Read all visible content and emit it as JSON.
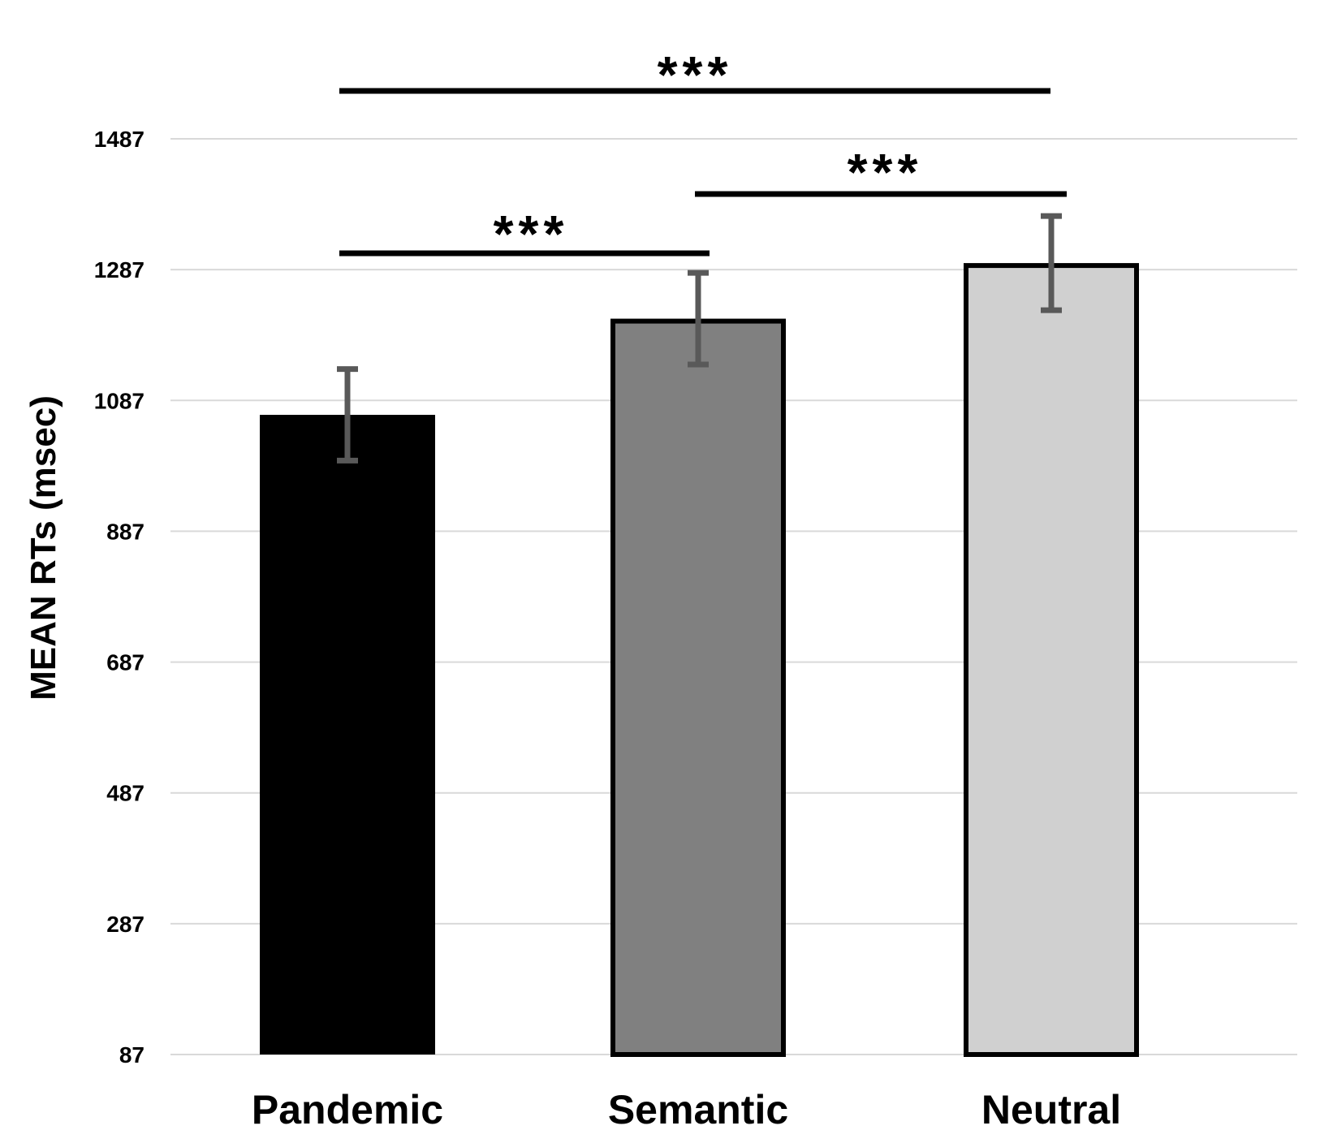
{
  "chart_data": {
    "type": "bar",
    "title": "",
    "xlabel": "",
    "ylabel": "MEAN RTs (msec)",
    "ylim": [
      87,
      1487
    ],
    "yticks": [
      87,
      287,
      487,
      687,
      887,
      1087,
      1287,
      1487
    ],
    "grid": true,
    "categories": [
      "Pandemic",
      "Semantic",
      "Neutral"
    ],
    "values": [
      1065,
      1212,
      1297
    ],
    "errors": [
      70,
      70,
      72
    ],
    "colors": [
      "#000000",
      "#808080",
      "#d0d0d0"
    ],
    "error_bar_color": "#595959",
    "significance": [
      {
        "from": "Pandemic",
        "to": "Semantic",
        "label": "***"
      },
      {
        "from": "Semantic",
        "to": "Neutral",
        "label": "***"
      },
      {
        "from": "Pandemic",
        "to": "Neutral",
        "label": "***"
      }
    ]
  }
}
